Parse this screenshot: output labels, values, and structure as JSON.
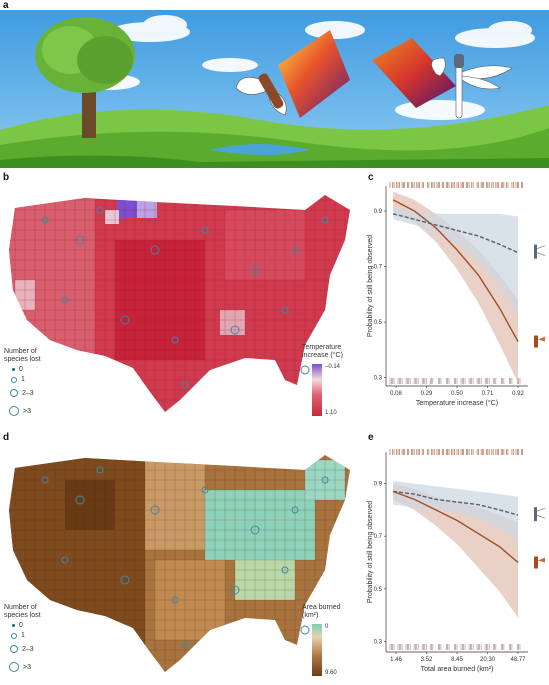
{
  "panels": {
    "a": "a",
    "b": "b",
    "c": "c",
    "d": "d",
    "e": "e"
  },
  "colors": {
    "sky": "#4fa9e6",
    "grass": "#6dbf3a",
    "temp_high": "#c8283c",
    "temp_low": "#7a4fd0",
    "area_low": "#7fcfb5",
    "area_high": "#6e3d18",
    "species_ring": "#3a8aa6",
    "trend_brown": "#a34e22",
    "trend_gray": "#555f6b",
    "band_brown": "#e2c2b6",
    "band_blue": "#ccd7e2",
    "rug_brown": "#a35a3a"
  },
  "icons": [
    "tree-icon",
    "butterfly-icon",
    "dragonfly-icon",
    "cloud-icon"
  ],
  "legend_species": {
    "title_line1": "Number of",
    "title_line2": "species lost",
    "items": [
      "0",
      "1",
      "2–3",
      ">3"
    ]
  },
  "map_b": {
    "colorbar_title_line1": "Temperature",
    "colorbar_title_line2": "increase (°C)",
    "colorbar_min": "1.10",
    "colorbar_max": "–0.14"
  },
  "map_d": {
    "colorbar_title_line1": "Area burned",
    "colorbar_title_line2": "(km²)",
    "colorbar_min": "9.60",
    "colorbar_max": "0"
  },
  "chart_data": [
    {
      "panel": "c",
      "type": "line",
      "ylabel": "Probability of still being observed",
      "xlabel": "Temperature increase (°C)",
      "x_ticks": [
        "0.08",
        "0.29",
        "0.50",
        "0.71",
        "0.92"
      ],
      "y_ticks": [
        "0.9",
        "0.7",
        "0.5",
        "0.3"
      ],
      "ylim": [
        0.27,
        0.99
      ],
      "xlim": [
        0.0,
        1.0
      ],
      "series": [
        {
          "x": [
            0.05,
            0.2,
            0.35,
            0.5,
            0.65,
            0.8,
            0.93
          ],
          "y": [
            0.94,
            0.9,
            0.84,
            0.76,
            0.67,
            0.55,
            0.43
          ],
          "lower": [
            0.9,
            0.86,
            0.79,
            0.69,
            0.57,
            0.42,
            0.28
          ],
          "upper": [
            0.97,
            0.94,
            0.89,
            0.83,
            0.76,
            0.67,
            0.58
          ]
        },
        {
          "x": [
            0.05,
            0.2,
            0.35,
            0.5,
            0.65,
            0.8,
            0.93
          ],
          "y": [
            0.89,
            0.87,
            0.85,
            0.83,
            0.81,
            0.78,
            0.75
          ],
          "lower": [
            0.87,
            0.85,
            0.82,
            0.78,
            0.72,
            0.63,
            0.53
          ],
          "upper": [
            0.91,
            0.9,
            0.89,
            0.89,
            0.89,
            0.89,
            0.88
          ]
        }
      ]
    },
    {
      "panel": "e",
      "type": "line",
      "ylabel": "Probability of still being observed",
      "xlabel": "Total area burned (km²)",
      "x_ticks": [
        "1.46",
        "3.52",
        "8.45",
        "20.30",
        "48.77"
      ],
      "y_ticks": [
        "0.9",
        "0.7",
        "0.5",
        "0.3"
      ],
      "ylim": [
        0.26,
        1.02
      ],
      "xlim": [
        0.0,
        1.0
      ],
      "series": [
        {
          "x": [
            0.05,
            0.2,
            0.35,
            0.5,
            0.65,
            0.8,
            0.93
          ],
          "y": [
            0.87,
            0.84,
            0.8,
            0.76,
            0.71,
            0.66,
            0.6
          ],
          "lower": [
            0.84,
            0.8,
            0.74,
            0.67,
            0.58,
            0.49,
            0.39
          ],
          "upper": [
            0.9,
            0.88,
            0.85,
            0.83,
            0.81,
            0.78,
            0.75
          ]
        },
        {
          "x": [
            0.05,
            0.2,
            0.35,
            0.5,
            0.65,
            0.8,
            0.93
          ],
          "y": [
            0.87,
            0.86,
            0.84,
            0.83,
            0.82,
            0.8,
            0.78
          ],
          "lower": [
            0.82,
            0.81,
            0.8,
            0.79,
            0.77,
            0.73,
            0.68
          ],
          "upper": [
            0.91,
            0.9,
            0.89,
            0.88,
            0.87,
            0.86,
            0.85
          ]
        }
      ]
    }
  ]
}
